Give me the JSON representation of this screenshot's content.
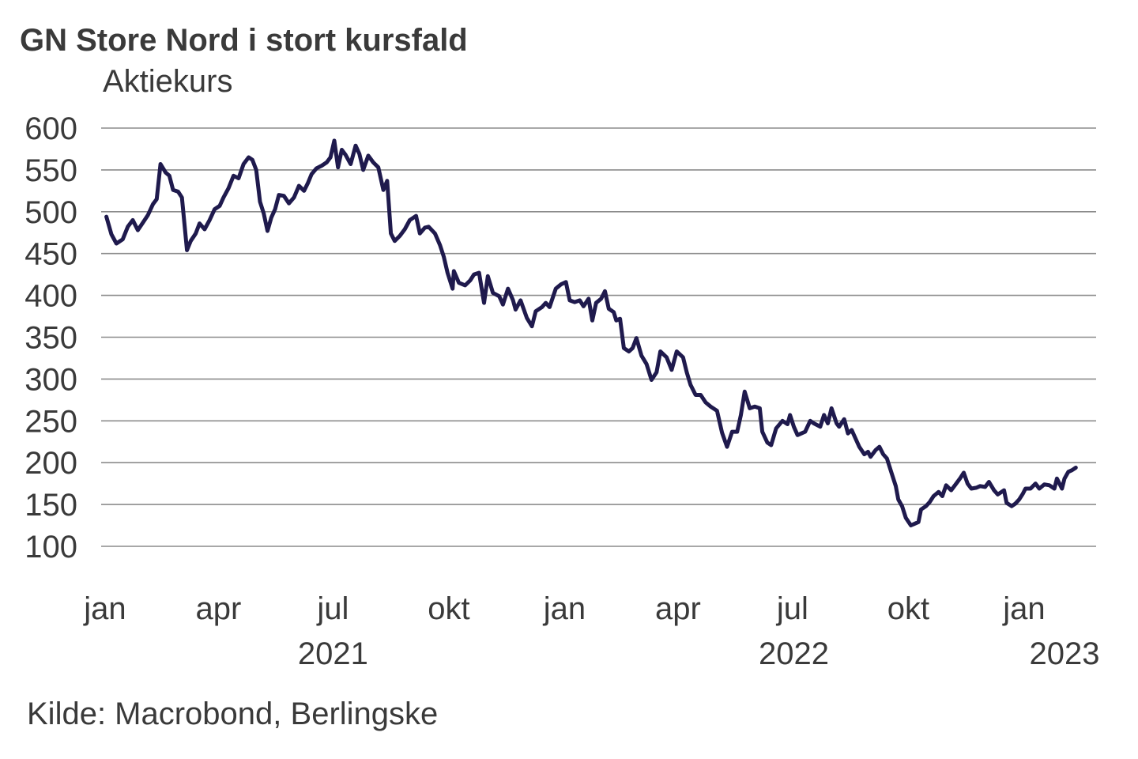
{
  "chart_data": {
    "type": "line",
    "title": "GN Store Nord i stort kursfald",
    "ylabel": "Aktiekurs",
    "xlabel": "",
    "source": "Kilde: Macrobond, Berlingske",
    "ylim": [
      100,
      600
    ],
    "yticks": [
      600,
      550,
      500,
      450,
      400,
      350,
      300,
      250,
      200,
      150,
      100
    ],
    "grid": true,
    "x_unit": "days since 2021-01-01",
    "xlim": [
      0,
      771
    ],
    "xticks": [
      {
        "label": "jan",
        "day": 0
      },
      {
        "label": "apr",
        "day": 90
      },
      {
        "label": "jul",
        "day": 181
      },
      {
        "label": "okt",
        "day": 273
      },
      {
        "label": "jan",
        "day": 365
      },
      {
        "label": "apr",
        "day": 455
      },
      {
        "label": "jul",
        "day": 546
      },
      {
        "label": "okt",
        "day": 638
      },
      {
        "label": "jan",
        "day": 730
      }
    ],
    "year_labels": [
      {
        "label": "2021",
        "day": 181
      },
      {
        "label": "2022",
        "day": 547
      },
      {
        "label": "2023",
        "day": 762
      }
    ],
    "series": [
      {
        "name": "GN Store Nord",
        "color": "#1f1a4d",
        "x": [
          1,
          5,
          9,
          14,
          18,
          22,
          26,
          30,
          34,
          38,
          41,
          44,
          48,
          51,
          54,
          58,
          61,
          65,
          68,
          72,
          75,
          79,
          83,
          87,
          91,
          94,
          98,
          102,
          106,
          110,
          114,
          117,
          120,
          123,
          126,
          129,
          132,
          135,
          138,
          142,
          146,
          150,
          154,
          158,
          161,
          164,
          168,
          172,
          176,
          179,
          182,
          185,
          188,
          191,
          195,
          199,
          202,
          205,
          209,
          213,
          217,
          221,
          224,
          227,
          230,
          234,
          238,
          242,
          247,
          250,
          254,
          257,
          262,
          266,
          269,
          272,
          276,
          277,
          281,
          286,
          290,
          293,
          297,
          301,
          304,
          308,
          313,
          316,
          320,
          324,
          326,
          330,
          335,
          339,
          342,
          347,
          350,
          353,
          358,
          362,
          366,
          369,
          373,
          377,
          380,
          384,
          387,
          390,
          394,
          397,
          400,
          404,
          406,
          409,
          412,
          416,
          419,
          422,
          426,
          430,
          434,
          438,
          441,
          446,
          450,
          454,
          459,
          462,
          465,
          469,
          473,
          477,
          481,
          486,
          490,
          494,
          498,
          502,
          505,
          508,
          512,
          516,
          520,
          522,
          526,
          529,
          533,
          538,
          542,
          544,
          547,
          550,
          556,
          560,
          563,
          568,
          571,
          574,
          577,
          581,
          583,
          587,
          590,
          593,
          596,
          599,
          603,
          606,
          608,
          612,
          615,
          618,
          621,
          625,
          628,
          630,
          633,
          636,
          640,
          643,
          646,
          648,
          652,
          655,
          658,
          662,
          665,
          668,
          672,
          676,
          679,
          682,
          685,
          688,
          692,
          695,
          699,
          702,
          706,
          709,
          711,
          714,
          716,
          720,
          723,
          726,
          729,
          731,
          735,
          739,
          742,
          746,
          750,
          754,
          756,
          760,
          762,
          765,
          768,
          771
        ],
        "values": [
          494,
          473,
          462,
          467,
          482,
          490,
          478,
          487,
          496,
          509,
          515,
          557,
          547,
          543,
          526,
          524,
          517,
          454,
          465,
          474,
          486,
          479,
          490,
          503,
          507,
          517,
          528,
          543,
          540,
          557,
          565,
          562,
          550,
          512,
          498,
          477,
          493,
          503,
          520,
          519,
          510,
          517,
          531,
          525,
          534,
          545,
          552,
          555,
          559,
          565,
          585,
          553,
          574,
          568,
          557,
          579,
          569,
          550,
          567,
          559,
          553,
          526,
          537,
          474,
          465,
          471,
          479,
          490,
          495,
          474,
          481,
          482,
          474,
          460,
          446,
          427,
          408,
          429,
          415,
          412,
          418,
          425,
          427,
          391,
          423,
          403,
          399,
          389,
          408,
          394,
          383,
          394,
          373,
          363,
          381,
          386,
          391,
          386,
          408,
          413,
          416,
          394,
          392,
          394,
          387,
          396,
          370,
          391,
          396,
          405,
          384,
          380,
          370,
          372,
          337,
          333,
          337,
          349,
          328,
          318,
          299,
          308,
          333,
          326,
          311,
          333,
          326,
          308,
          293,
          281,
          281,
          272,
          267,
          262,
          236,
          219,
          237,
          237,
          257,
          285,
          265,
          267,
          265,
          237,
          224,
          221,
          241,
          250,
          246,
          257,
          243,
          233,
          237,
          250,
          247,
          243,
          257,
          247,
          265,
          247,
          243,
          252,
          235,
          239,
          229,
          219,
          210,
          213,
          207,
          215,
          219,
          210,
          205,
          186,
          172,
          156,
          148,
          134,
          125,
          127,
          129,
          144,
          148,
          153,
          160,
          165,
          160,
          173,
          167,
          175,
          181,
          188,
          175,
          169,
          170,
          172,
          171,
          177,
          167,
          162,
          164,
          167,
          152,
          148,
          151,
          156,
          163,
          169,
          169,
          175,
          169,
          174,
          173,
          169,
          181,
          169,
          181,
          189,
          191,
          194
        ]
      }
    ]
  }
}
